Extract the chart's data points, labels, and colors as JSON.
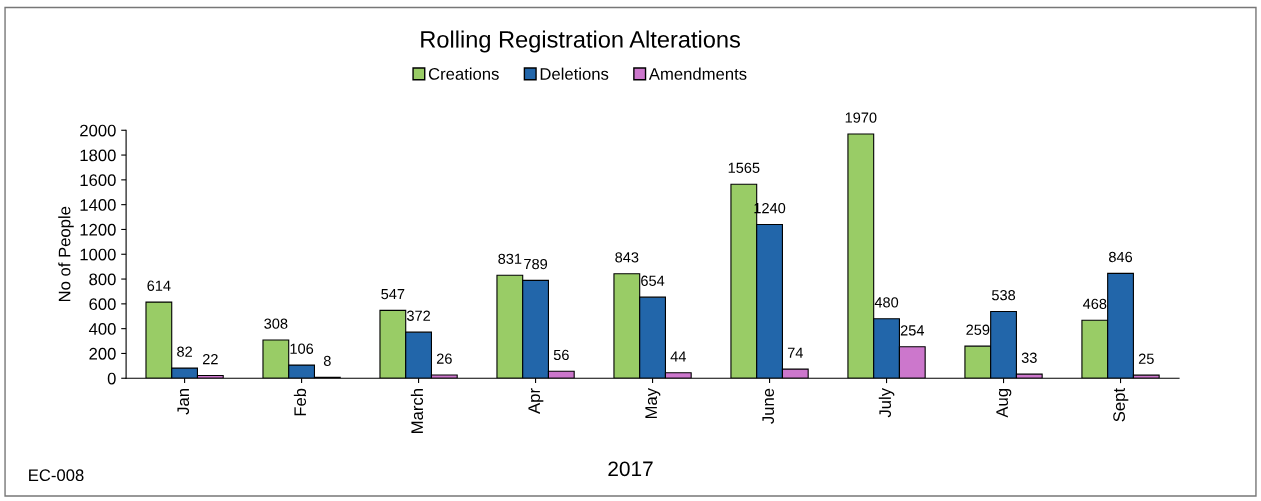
{
  "chart_data": {
    "type": "bar",
    "title": "Rolling Registration Alterations",
    "xlabel": "2017",
    "ylabel": "No of People",
    "categories": [
      "Jan",
      "Feb",
      "March",
      "Apr",
      "May",
      "June",
      "July",
      "Aug",
      "Sept"
    ],
    "series": [
      {
        "name": "Creations",
        "color": "#99cc66",
        "values": [
          614,
          308,
          547,
          831,
          843,
          1565,
          1970,
          259,
          468
        ]
      },
      {
        "name": "Deletions",
        "color": "#2266aa",
        "values": [
          82,
          106,
          372,
          789,
          654,
          1240,
          480,
          538,
          846
        ]
      },
      {
        "name": "Amendments",
        "color": "#cc77cc",
        "values": [
          22,
          8,
          26,
          56,
          44,
          74,
          254,
          33,
          25
        ]
      }
    ],
    "ylim": [
      0,
      2000
    ],
    "yticks": [
      0,
      200,
      400,
      600,
      800,
      1000,
      1200,
      1400,
      1600,
      1800,
      2000
    ],
    "data_labels": true,
    "grid": false,
    "legend": "top",
    "annotations": [
      "EC-008"
    ]
  }
}
